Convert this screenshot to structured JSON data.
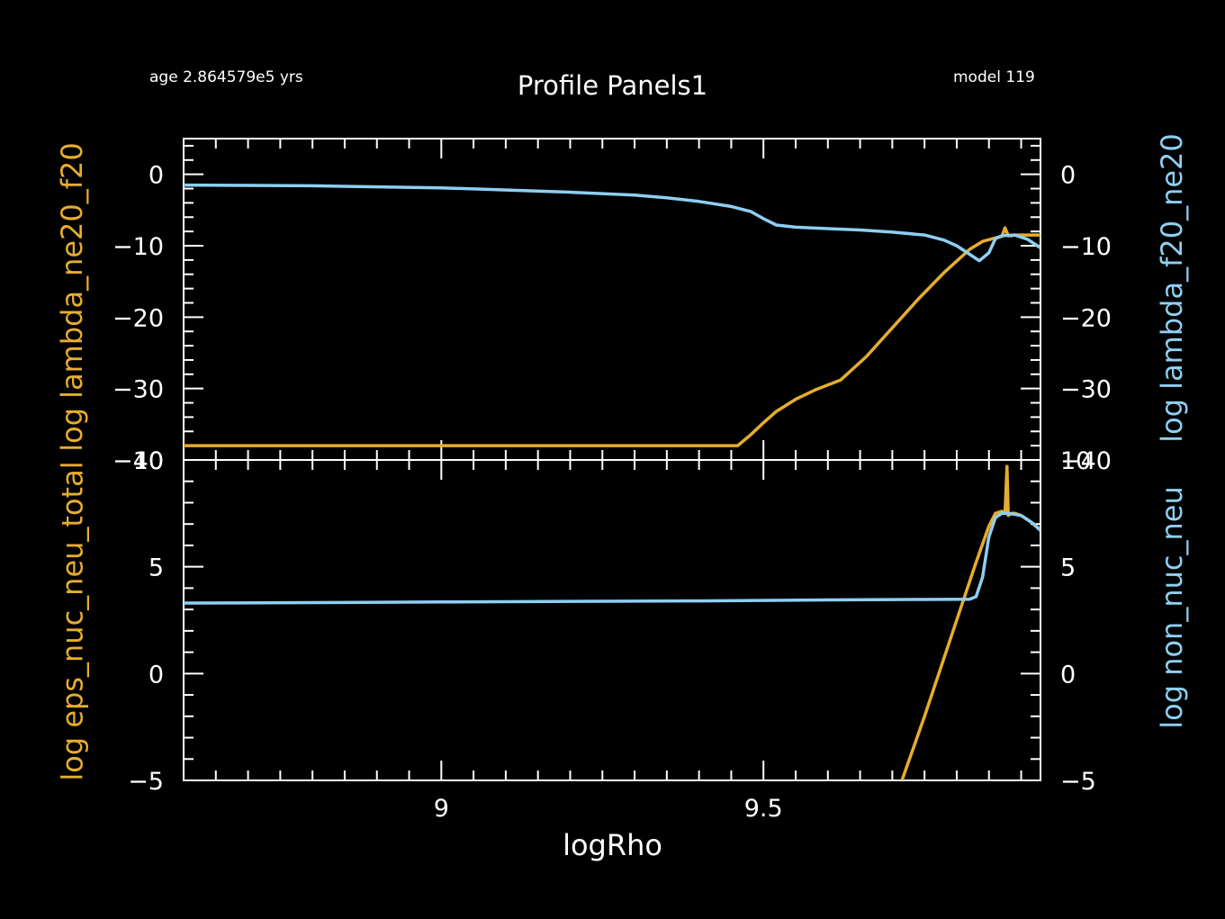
{
  "header": {
    "age": "age 2.864579e5 yrs",
    "model": "model 119",
    "title": "Profile Panels1"
  },
  "colors": {
    "orange": "#e6ad2e",
    "blue": "#8ecff2",
    "axes": "#ffffff",
    "background": "#000000"
  },
  "chart_data": [
    {
      "type": "line",
      "panel": "top",
      "xlabel": "logRho",
      "xlim": [
        8.6,
        9.93
      ],
      "x_ticks": [
        9,
        9.5
      ],
      "ylabel_left": "log lambda_ne20_f20",
      "ylabel_right": "log lambda_f20_ne20",
      "ylim_left": [
        -40,
        5
      ],
      "ylim_right": [
        -40,
        5
      ],
      "y_ticks_left": [
        0,
        -10,
        -20,
        -30,
        -40
      ],
      "y_ticks_right": [
        0,
        -10,
        -20,
        -30,
        -40
      ],
      "series": [
        {
          "axis": "left",
          "color": "#e6ad2e",
          "x": [
            8.6,
            9.0,
            9.4,
            9.46,
            9.48,
            9.5,
            9.52,
            9.55,
            9.58,
            9.62,
            9.66,
            9.7,
            9.74,
            9.78,
            9.82,
            9.84,
            9.86,
            9.87,
            9.875,
            9.88,
            9.885,
            9.89,
            9.9,
            9.93
          ],
          "y": [
            -38,
            -38,
            -38,
            -38,
            -36.5,
            -34.8,
            -33.2,
            -31.5,
            -30.2,
            -28.8,
            -25.5,
            -21.5,
            -17.5,
            -13.8,
            -10.5,
            -9.4,
            -8.9,
            -8.7,
            -7.5,
            -8.6,
            -8.6,
            -8.5,
            -8.5,
            -8.5
          ]
        },
        {
          "axis": "right",
          "color": "#8ecff2",
          "x": [
            8.6,
            8.8,
            9.0,
            9.2,
            9.3,
            9.35,
            9.4,
            9.45,
            9.48,
            9.5,
            9.52,
            9.55,
            9.6,
            9.65,
            9.7,
            9.75,
            9.78,
            9.8,
            9.82,
            9.835,
            9.85,
            9.86,
            9.87,
            9.89,
            9.91,
            9.93
          ],
          "y": [
            -1.5,
            -1.6,
            -1.9,
            -2.5,
            -2.9,
            -3.3,
            -3.8,
            -4.5,
            -5.2,
            -6.2,
            -7.1,
            -7.4,
            -7.6,
            -7.8,
            -8.1,
            -8.5,
            -9.2,
            -10.0,
            -11.2,
            -12.1,
            -11.0,
            -9.0,
            -8.6,
            -8.5,
            -9.1,
            -10.3
          ]
        }
      ]
    },
    {
      "type": "line",
      "panel": "bottom",
      "xlabel": "logRho",
      "xlim": [
        8.6,
        9.93
      ],
      "x_ticks": [
        9,
        9.5
      ],
      "ylabel_left": "log eps_nuc_neu_total",
      "ylabel_right": "log non_nuc_neu",
      "ylim_left": [
        -5,
        10
      ],
      "ylim_right": [
        -5,
        10
      ],
      "y_ticks_left": [
        -5,
        0,
        5,
        10
      ],
      "y_ticks_right": [
        -5,
        0,
        5,
        10
      ],
      "series": [
        {
          "axis": "left",
          "color": "#e6ad2e",
          "x": [
            9.715,
            9.75,
            9.8,
            9.83,
            9.85,
            9.86,
            9.87,
            9.875,
            9.878,
            9.88,
            9.885,
            9.89,
            9.9,
            9.915,
            9.93
          ],
          "y": [
            -5,
            -2,
            2.5,
            5.2,
            6.9,
            7.5,
            7.6,
            7.5,
            9.7,
            7.4,
            7.5,
            7.5,
            7.4,
            7.1,
            6.7
          ]
        },
        {
          "axis": "right",
          "color": "#8ecff2",
          "x": [
            8.6,
            8.8,
            9.0,
            9.2,
            9.4,
            9.6,
            9.75,
            9.82,
            9.83,
            9.84,
            9.85,
            9.86,
            9.87,
            9.88,
            9.9,
            9.92,
            9.93
          ],
          "y": [
            3.3,
            3.32,
            3.35,
            3.38,
            3.4,
            3.45,
            3.47,
            3.48,
            3.6,
            4.5,
            6.4,
            7.3,
            7.5,
            7.5,
            7.4,
            7.0,
            6.7
          ]
        }
      ]
    }
  ]
}
